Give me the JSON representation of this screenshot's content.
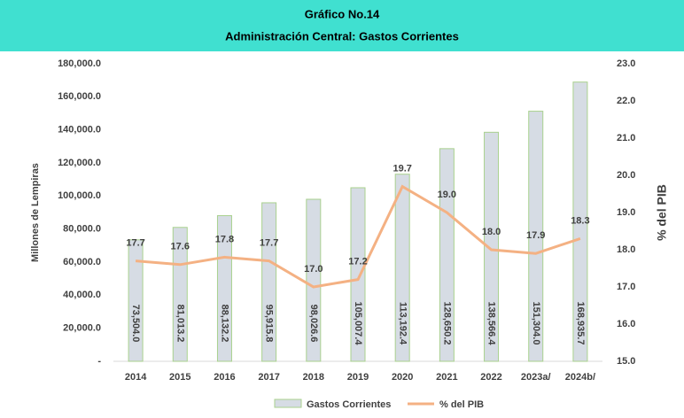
{
  "chart_data": {
    "type": "bar",
    "title": "Gráfico No.14",
    "subtitle": "Administración Central: Gastos Corrientes",
    "ylabel": "Millones de Lempiras",
    "y2label": "% del PIB",
    "categories": [
      "2014",
      "2015",
      "2016",
      "2017",
      "2018",
      "2019",
      "2020",
      "2021",
      "2022",
      "2023a/",
      "2024b/"
    ],
    "series": [
      {
        "name": "Gastos Corrientes",
        "type": "bar",
        "color": "#d6dce4",
        "edge_color": "#a9d18e",
        "values": [
          73504.0,
          81013.2,
          88132.2,
          95915.8,
          98026.6,
          105007.4,
          113192.4,
          128650.2,
          138566.4,
          151304.0,
          168935.7
        ],
        "value_labels": [
          "73,504.0",
          "81,013.2",
          "88,132.2",
          "95,915.8",
          "98,026.6",
          "105,007.4",
          "113,192.4",
          "128,650.2",
          "138,566.4",
          "151,304.0",
          "168,935.7"
        ]
      },
      {
        "name": "% del PIB",
        "type": "line",
        "axis": "y2",
        "color": "#f4b183",
        "values": [
          17.7,
          17.6,
          17.8,
          17.7,
          17.0,
          17.2,
          19.7,
          19.0,
          18.0,
          17.9,
          18.3
        ],
        "value_labels": [
          "17.7",
          "17.6",
          "17.8",
          "17.7",
          "17.0",
          "17.2",
          "19.7",
          "19.0",
          "18.0",
          "17.9",
          "18.3"
        ]
      }
    ],
    "ylim": [
      0,
      180000
    ],
    "yticks": [
      {
        "value": 0,
        "label": "-"
      },
      {
        "value": 20000,
        "label": "20,000.0"
      },
      {
        "value": 40000,
        "label": "40,000.0"
      },
      {
        "value": 60000,
        "label": "60,000.0"
      },
      {
        "value": 80000,
        "label": "80,000.0"
      },
      {
        "value": 100000,
        "label": "100,000.0"
      },
      {
        "value": 120000,
        "label": "120,000.0"
      },
      {
        "value": 140000,
        "label": "140,000.0"
      },
      {
        "value": 160000,
        "label": "160,000.0"
      },
      {
        "value": 180000,
        "label": "180,000.0"
      }
    ],
    "y2lim": [
      15,
      23
    ],
    "y2ticks": [
      {
        "value": 15,
        "label": "15.0"
      },
      {
        "value": 16,
        "label": "16.0"
      },
      {
        "value": 17,
        "label": "17.0"
      },
      {
        "value": 18,
        "label": "18.0"
      },
      {
        "value": 19,
        "label": "19.0"
      },
      {
        "value": 20,
        "label": "20.0"
      },
      {
        "value": 21,
        "label": "21.0"
      },
      {
        "value": 22,
        "label": "22.0"
      },
      {
        "value": 23,
        "label": "23.0"
      }
    ],
    "grid": false,
    "legend": "bottom"
  }
}
